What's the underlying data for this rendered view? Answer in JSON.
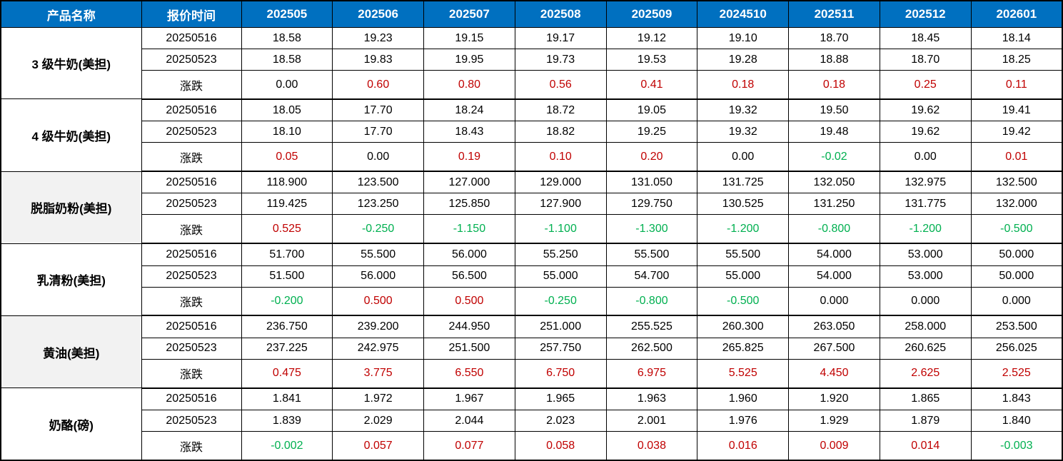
{
  "colors": {
    "header_bg": "#0070C0",
    "header_text": "#FFFFFF",
    "positive_change": "#C00000",
    "negative_change": "#00B050",
    "neutral_change": "#000000",
    "shaded_product_bg": "#F2F2F2",
    "border": "#000000"
  },
  "table": {
    "product_header": "产品名称",
    "time_header": "报价时间",
    "month_headers": [
      "202505",
      "202506",
      "202507",
      "202508",
      "202509",
      "2024510",
      "202511",
      "202512",
      "202601"
    ],
    "change_label": "涨跌",
    "groups": [
      {
        "product": "3 级牛奶(美担)",
        "shaded": false,
        "rows": [
          {
            "label": "20250516",
            "type": "quote",
            "values": [
              "18.58",
              "19.23",
              "19.15",
              "19.17",
              "19.12",
              "19.10",
              "18.70",
              "18.45",
              "18.14"
            ]
          },
          {
            "label": "20250523",
            "type": "quote",
            "values": [
              "18.58",
              "19.83",
              "19.95",
              "19.73",
              "19.53",
              "19.28",
              "18.88",
              "18.70",
              "18.25"
            ]
          },
          {
            "label": "涨跌",
            "type": "change",
            "values": [
              "0.00",
              "0.60",
              "0.80",
              "0.56",
              "0.41",
              "0.18",
              "0.18",
              "0.25",
              "0.11"
            ]
          }
        ]
      },
      {
        "product": "4 级牛奶(美担)",
        "shaded": false,
        "rows": [
          {
            "label": "20250516",
            "type": "quote",
            "values": [
              "18.05",
              "17.70",
              "18.24",
              "18.72",
              "19.05",
              "19.32",
              "19.50",
              "19.62",
              "19.41"
            ]
          },
          {
            "label": "20250523",
            "type": "quote",
            "values": [
              "18.10",
              "17.70",
              "18.43",
              "18.82",
              "19.25",
              "19.32",
              "19.48",
              "19.62",
              "19.42"
            ]
          },
          {
            "label": "涨跌",
            "type": "change",
            "values": [
              "0.05",
              "0.00",
              "0.19",
              "0.10",
              "0.20",
              "0.00",
              "-0.02",
              "0.00",
              "0.01"
            ]
          }
        ]
      },
      {
        "product": "脱脂奶粉(美担)",
        "shaded": true,
        "rows": [
          {
            "label": "20250516",
            "type": "quote",
            "values": [
              "118.900",
              "123.500",
              "127.000",
              "129.000",
              "131.050",
              "131.725",
              "132.050",
              "132.975",
              "132.500"
            ]
          },
          {
            "label": "20250523",
            "type": "quote",
            "values": [
              "119.425",
              "123.250",
              "125.850",
              "127.900",
              "129.750",
              "130.525",
              "131.250",
              "131.775",
              "132.000"
            ]
          },
          {
            "label": "涨跌",
            "type": "change",
            "values": [
              "0.525",
              "-0.250",
              "-1.150",
              "-1.100",
              "-1.300",
              "-1.200",
              "-0.800",
              "-1.200",
              "-0.500"
            ]
          }
        ]
      },
      {
        "product": "乳清粉(美担)",
        "shaded": false,
        "rows": [
          {
            "label": "20250516",
            "type": "quote",
            "values": [
              "51.700",
              "55.500",
              "56.000",
              "55.250",
              "55.500",
              "55.500",
              "54.000",
              "53.000",
              "50.000"
            ]
          },
          {
            "label": "20250523",
            "type": "quote",
            "values": [
              "51.500",
              "56.000",
              "56.500",
              "55.000",
              "54.700",
              "55.000",
              "54.000",
              "53.000",
              "50.000"
            ]
          },
          {
            "label": "涨跌",
            "type": "change",
            "values": [
              "-0.200",
              "0.500",
              "0.500",
              "-0.250",
              "-0.800",
              "-0.500",
              "0.000",
              "0.000",
              "0.000"
            ]
          }
        ]
      },
      {
        "product": "黄油(美担)",
        "shaded": true,
        "rows": [
          {
            "label": "20250516",
            "type": "quote",
            "values": [
              "236.750",
              "239.200",
              "244.950",
              "251.000",
              "255.525",
              "260.300",
              "263.050",
              "258.000",
              "253.500"
            ]
          },
          {
            "label": "20250523",
            "type": "quote",
            "values": [
              "237.225",
              "242.975",
              "251.500",
              "257.750",
              "262.500",
              "265.825",
              "267.500",
              "260.625",
              "256.025"
            ]
          },
          {
            "label": "涨跌",
            "type": "change",
            "values": [
              "0.475",
              "3.775",
              "6.550",
              "6.750",
              "6.975",
              "5.525",
              "4.450",
              "2.625",
              "2.525"
            ]
          }
        ]
      },
      {
        "product": "奶酪(磅)",
        "shaded": false,
        "rows": [
          {
            "label": "20250516",
            "type": "quote",
            "values": [
              "1.841",
              "1.972",
              "1.967",
              "1.965",
              "1.963",
              "1.960",
              "1.920",
              "1.865",
              "1.843"
            ]
          },
          {
            "label": "20250523",
            "type": "quote",
            "values": [
              "1.839",
              "2.029",
              "2.044",
              "2.023",
              "2.001",
              "1.976",
              "1.929",
              "1.879",
              "1.840"
            ]
          },
          {
            "label": "涨跌",
            "type": "change",
            "values": [
              "-0.002",
              "0.057",
              "0.077",
              "0.058",
              "0.038",
              "0.016",
              "0.009",
              "0.014",
              "-0.003"
            ]
          }
        ]
      }
    ]
  }
}
